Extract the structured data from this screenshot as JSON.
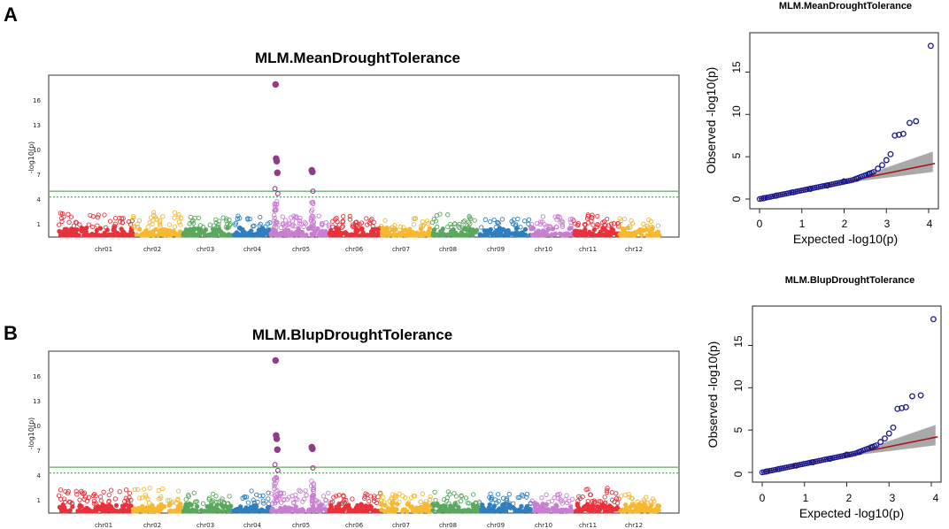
{
  "figure": {
    "panels": [
      {
        "letter": "A",
        "manhattan": {
          "title": "MLM.MeanDroughtTolerance",
          "ylabel": "-log10(p)",
          "yticks": [
            "1",
            "4",
            "7",
            "10",
            "13",
            "16"
          ],
          "chromosomes": [
            "chr01",
            "chr02",
            "chr03",
            "chr04",
            "chr05",
            "chr06",
            "chr07",
            "chr08",
            "chr09",
            "chr10",
            "chr11",
            "chr12"
          ]
        },
        "qq": {
          "title": "MLM.MeanDroughtTolerance",
          "xlabel": "Expected -log10(p)",
          "ylabel": "Observed -log10(p)",
          "xticks": [
            "0",
            "1",
            "2",
            "3",
            "4"
          ],
          "yticks": [
            "0",
            "5",
            "10",
            "15"
          ]
        }
      },
      {
        "letter": "B",
        "manhattan": {
          "title": "MLM.BlupDroughtTolerance",
          "ylabel": "-log10(p)",
          "yticks": [
            "1",
            "4",
            "7",
            "10",
            "13",
            "16"
          ],
          "chromosomes": [
            "chr01",
            "chr02",
            "chr03",
            "chr04",
            "chr05",
            "chr06",
            "chr07",
            "chr08",
            "chr09",
            "chr10",
            "chr11",
            "chr12"
          ]
        },
        "qq": {
          "title": "MLM.BlupDroughtTolerance",
          "xlabel": "Expected -log10(p)",
          "ylabel": "Observed -log10(p)",
          "xticks": [
            "0",
            "1",
            "2",
            "3",
            "4"
          ],
          "yticks": [
            "0",
            "5",
            "10",
            "15"
          ]
        }
      }
    ]
  },
  "chart_data": [
    {
      "type": "scatter",
      "subtype": "manhattan",
      "title": "MLM.MeanDroughtTolerance",
      "xlabel": "",
      "ylabel": "-log10(p)",
      "ylim": [
        0,
        19
      ],
      "chromosomes": [
        "chr01",
        "chr02",
        "chr03",
        "chr04",
        "chr05",
        "chr06",
        "chr07",
        "chr08",
        "chr09",
        "chr10",
        "chr11",
        "chr12"
      ],
      "chromosome_colors": [
        "#e8323b",
        "#f6b830",
        "#5aa85e",
        "#2f7fbf",
        "#c77fcf",
        "#e8323b",
        "#f6b830",
        "#5aa85e",
        "#2f7fbf",
        "#c77fcf",
        "#e8323b",
        "#f6b830"
      ],
      "chromosome_max_background": [
        2.7,
        2.8,
        2.2,
        2.5,
        2.6,
        2.4,
        2.2,
        2.6,
        2.1,
        2.3,
        2.6,
        2.4
      ],
      "thresholds": [
        5.3,
        4.6
      ],
      "significant_points": [
        {
          "chr": "chr05",
          "pos": 0.08,
          "value": 18.1
        },
        {
          "chr": "chr05",
          "pos": 0.09,
          "value": 9.2
        },
        {
          "chr": "chr05",
          "pos": 0.1,
          "value": 8.9
        },
        {
          "chr": "chr05",
          "pos": 0.11,
          "value": 7.5
        },
        {
          "chr": "chr05",
          "pos": 0.07,
          "value": 5.6
        },
        {
          "chr": "chr05",
          "pos": 0.12,
          "value": 5.0
        },
        {
          "chr": "chr05",
          "pos": 0.7,
          "value": 7.8
        },
        {
          "chr": "chr05",
          "pos": 0.71,
          "value": 7.6
        },
        {
          "chr": "chr05",
          "pos": 0.72,
          "value": 5.3
        }
      ]
    },
    {
      "type": "scatter",
      "subtype": "qq",
      "title": "MLM.MeanDroughtTolerance",
      "xlabel": "Expected -log10(p)",
      "ylabel": "Observed -log10(p)",
      "xlim": [
        0,
        4.2
      ],
      "ylim": [
        0,
        19
      ],
      "expected_line": [
        [
          0,
          0
        ],
        [
          4.2,
          4.2
        ]
      ],
      "points": [
        [
          0.1,
          0.1
        ],
        [
          0.4,
          0.4
        ],
        [
          0.8,
          0.8
        ],
        [
          1.2,
          1.2
        ],
        [
          1.6,
          1.6
        ],
        [
          2.0,
          2.1
        ],
        [
          2.3,
          2.4
        ],
        [
          2.6,
          3.0
        ],
        [
          2.8,
          3.6
        ],
        [
          2.9,
          4.0
        ],
        [
          3.0,
          4.6
        ],
        [
          3.1,
          5.3
        ],
        [
          3.2,
          7.5
        ],
        [
          3.3,
          7.6
        ],
        [
          3.4,
          7.7
        ],
        [
          3.55,
          9.0
        ],
        [
          3.7,
          9.2
        ],
        [
          4.05,
          18.1
        ]
      ]
    },
    {
      "type": "scatter",
      "subtype": "manhattan",
      "title": "MLM.BlupDroughtTolerance",
      "xlabel": "",
      "ylabel": "-log10(p)",
      "ylim": [
        0,
        19
      ],
      "chromosomes": [
        "chr01",
        "chr02",
        "chr03",
        "chr04",
        "chr05",
        "chr06",
        "chr07",
        "chr08",
        "chr09",
        "chr10",
        "chr11",
        "chr12"
      ],
      "chromosome_colors": [
        "#e8323b",
        "#f6b830",
        "#5aa85e",
        "#2f7fbf",
        "#c77fcf",
        "#e8323b",
        "#f6b830",
        "#5aa85e",
        "#2f7fbf",
        "#c77fcf",
        "#e8323b",
        "#f6b830"
      ],
      "chromosome_max_background": [
        2.7,
        2.9,
        2.2,
        2.5,
        2.6,
        2.4,
        2.2,
        2.7,
        2.1,
        2.3,
        2.8,
        2.4
      ],
      "thresholds": [
        5.3,
        4.6
      ],
      "significant_points": [
        {
          "chr": "chr05",
          "pos": 0.08,
          "value": 18.1
        },
        {
          "chr": "chr05",
          "pos": 0.09,
          "value": 9.1
        },
        {
          "chr": "chr05",
          "pos": 0.1,
          "value": 8.7
        },
        {
          "chr": "chr05",
          "pos": 0.11,
          "value": 7.4
        },
        {
          "chr": "chr05",
          "pos": 0.07,
          "value": 5.6
        },
        {
          "chr": "chr05",
          "pos": 0.12,
          "value": 4.9
        },
        {
          "chr": "chr05",
          "pos": 0.7,
          "value": 7.7
        },
        {
          "chr": "chr05",
          "pos": 0.71,
          "value": 7.5
        },
        {
          "chr": "chr05",
          "pos": 0.72,
          "value": 5.2
        }
      ]
    },
    {
      "type": "scatter",
      "subtype": "qq",
      "title": "MLM.BlupDroughtTolerance",
      "xlabel": "Expected -log10(p)",
      "ylabel": "Observed -log10(p)",
      "xlim": [
        0,
        4.2
      ],
      "ylim": [
        0,
        19
      ],
      "expected_line": [
        [
          0,
          0
        ],
        [
          4.2,
          4.2
        ]
      ],
      "points": [
        [
          0.1,
          0.1
        ],
        [
          0.4,
          0.4
        ],
        [
          0.8,
          0.8
        ],
        [
          1.2,
          1.2
        ],
        [
          1.6,
          1.6
        ],
        [
          2.0,
          2.1
        ],
        [
          2.3,
          2.4
        ],
        [
          2.6,
          3.0
        ],
        [
          2.8,
          3.6
        ],
        [
          2.9,
          4.0
        ],
        [
          3.0,
          4.6
        ],
        [
          3.1,
          5.3
        ],
        [
          3.2,
          7.5
        ],
        [
          3.3,
          7.6
        ],
        [
          3.4,
          7.7
        ],
        [
          3.55,
          9.0
        ],
        [
          3.75,
          9.1
        ],
        [
          4.05,
          18.1
        ]
      ]
    }
  ]
}
